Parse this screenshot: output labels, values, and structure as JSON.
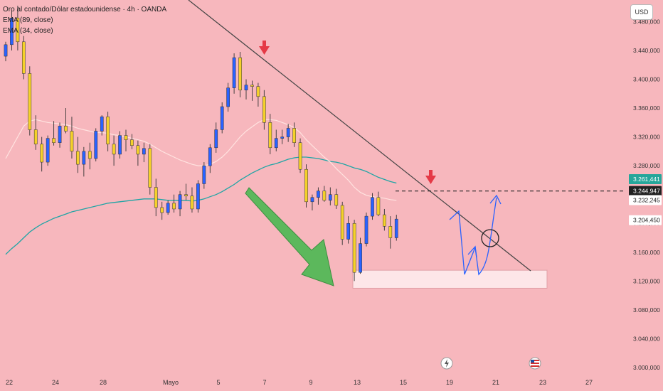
{
  "header": {
    "title": "Oro al contado/Dólar estadounidense · 4h · OANDA",
    "ema89": "EMA (89, close)",
    "ema34": "EMA (34, close)",
    "currency": "USD"
  },
  "chart_data": {
    "type": "candlestick",
    "title": "Oro al contado/Dólar estadounidense · 4h · OANDA",
    "y_ticks": [
      "3.480,000",
      "3.440,000",
      "3.400,000",
      "3.360,000",
      "3.320,000",
      "3.280,000",
      "3.240,000",
      "3.200,000",
      "3.160,000",
      "3.120,000",
      "3.080,000",
      "3.040,000",
      "3.000,000"
    ],
    "y_tick_values": [
      3480,
      3440,
      3400,
      3360,
      3320,
      3280,
      3240,
      3200,
      3160,
      3120,
      3080,
      3040,
      3000
    ],
    "ylim": [
      2997,
      3510
    ],
    "x_ticks": [
      "22",
      "24",
      "28",
      "Mayo",
      "5",
      "7",
      "9",
      "13",
      "15",
      "19",
      "21",
      "23",
      "27"
    ],
    "price_labels": [
      {
        "text": "3.261,441",
        "value": 3261.441,
        "color": "#26a69a"
      },
      {
        "text": "3.244,947",
        "value": 3244.947,
        "color": "#222222"
      },
      {
        "text": "3.232,245",
        "value": 3232.245,
        "color": "#ffffff"
      },
      {
        "text": "3.204,450",
        "value": 3204.45,
        "color": "#ffffff"
      }
    ],
    "resistance_level": 3244.947,
    "support_zone": [
      3110,
      3135
    ],
    "trendline": [
      [
        0,
        3555
      ],
      [
        1,
        3133
      ]
    ],
    "up_color": "#2962ff",
    "down_color": "#f5d12a",
    "ema89_color": "#1fa5a5",
    "ema34_color": "#ffe3e0",
    "annotation_arrow_color": "#4caf50",
    "candles": [
      [
        3432,
        3452,
        3425,
        3448
      ],
      [
        3448,
        3495,
        3440,
        3485
      ],
      [
        3485,
        3502,
        3440,
        3452
      ],
      [
        3452,
        3460,
        3400,
        3408
      ],
      [
        3408,
        3418,
        3322,
        3330
      ],
      [
        3330,
        3350,
        3302,
        3310
      ],
      [
        3310,
        3320,
        3272,
        3285
      ],
      [
        3285,
        3322,
        3280,
        3318
      ],
      [
        3318,
        3342,
        3308,
        3312
      ],
      [
        3312,
        3340,
        3305,
        3335
      ],
      [
        3335,
        3360,
        3325,
        3328
      ],
      [
        3328,
        3348,
        3290,
        3300
      ],
      [
        3300,
        3320,
        3270,
        3282
      ],
      [
        3282,
        3306,
        3265,
        3300
      ],
      [
        3300,
        3312,
        3275,
        3290
      ],
      [
        3290,
        3332,
        3286,
        3328
      ],
      [
        3328,
        3350,
        3322,
        3348
      ],
      [
        3348,
        3355,
        3300,
        3310
      ],
      [
        3310,
        3322,
        3280,
        3296
      ],
      [
        3296,
        3328,
        3290,
        3322
      ],
      [
        3322,
        3330,
        3300,
        3316
      ],
      [
        3316,
        3324,
        3303,
        3308
      ],
      [
        3308,
        3315,
        3280,
        3296
      ],
      [
        3296,
        3312,
        3285,
        3304
      ],
      [
        3304,
        3310,
        3240,
        3250
      ],
      [
        3250,
        3262,
        3210,
        3222
      ],
      [
        3222,
        3230,
        3205,
        3215
      ],
      [
        3215,
        3232,
        3212,
        3228
      ],
      [
        3228,
        3240,
        3215,
        3220
      ],
      [
        3220,
        3245,
        3210,
        3240
      ],
      [
        3240,
        3255,
        3232,
        3238
      ],
      [
        3238,
        3250,
        3215,
        3220
      ],
      [
        3220,
        3260,
        3215,
        3255
      ],
      [
        3255,
        3285,
        3248,
        3280
      ],
      [
        3280,
        3310,
        3270,
        3305
      ],
      [
        3305,
        3340,
        3298,
        3330
      ],
      [
        3330,
        3368,
        3325,
        3362
      ],
      [
        3362,
        3395,
        3355,
        3388
      ],
      [
        3388,
        3436,
        3380,
        3430
      ],
      [
        3430,
        3438,
        3375,
        3385
      ],
      [
        3385,
        3400,
        3372,
        3392
      ],
      [
        3392,
        3398,
        3370,
        3390
      ],
      [
        3390,
        3395,
        3362,
        3376
      ],
      [
        3376,
        3385,
        3330,
        3340
      ],
      [
        3340,
        3352,
        3296,
        3305
      ],
      [
        3305,
        3330,
        3300,
        3318
      ],
      [
        3318,
        3330,
        3310,
        3320
      ],
      [
        3320,
        3338,
        3313,
        3332
      ],
      [
        3332,
        3340,
        3306,
        3312
      ],
      [
        3312,
        3318,
        3270,
        3275
      ],
      [
        3275,
        3282,
        3222,
        3230
      ],
      [
        3230,
        3240,
        3218,
        3236
      ],
      [
        3236,
        3250,
        3226,
        3245
      ],
      [
        3245,
        3252,
        3230,
        3232
      ],
      [
        3232,
        3250,
        3225,
        3240
      ],
      [
        3240,
        3248,
        3220,
        3225
      ],
      [
        3225,
        3230,
        3170,
        3178
      ],
      [
        3178,
        3210,
        3172,
        3200
      ],
      [
        3200,
        3205,
        3120,
        3132
      ],
      [
        3132,
        3180,
        3130,
        3172
      ],
      [
        3172,
        3215,
        3168,
        3210
      ],
      [
        3210,
        3242,
        3205,
        3236
      ],
      [
        3236,
        3244,
        3210,
        3212
      ],
      [
        3212,
        3220,
        3190,
        3196
      ],
      [
        3196,
        3210,
        3165,
        3180
      ],
      [
        3180,
        3212,
        3176,
        3206
      ]
    ],
    "ema89": [
      3157,
      3165,
      3172,
      3180,
      3188,
      3194,
      3199,
      3203,
      3207,
      3210,
      3213,
      3216,
      3218,
      3220,
      3222,
      3224,
      3226,
      3228,
      3229,
      3230,
      3231,
      3232,
      3233,
      3234,
      3234,
      3234,
      3233,
      3232,
      3232,
      3232,
      3232,
      3231,
      3232,
      3234,
      3237,
      3240,
      3244,
      3249,
      3254,
      3260,
      3265,
      3270,
      3274,
      3278,
      3281,
      3283,
      3286,
      3289,
      3291,
      3292,
      3292,
      3291,
      3290,
      3288,
      3286,
      3285,
      3283,
      3280,
      3277,
      3275,
      3272,
      3268,
      3264,
      3261,
      3258,
      3256
    ],
    "ema34": [
      3290,
      3305,
      3320,
      3335,
      3342,
      3344,
      3342,
      3340,
      3339,
      3338,
      3337,
      3335,
      3332,
      3330,
      3328,
      3326,
      3326,
      3325,
      3323,
      3322,
      3320,
      3318,
      3316,
      3314,
      3310,
      3305,
      3300,
      3296,
      3292,
      3288,
      3285,
      3282,
      3280,
      3280,
      3282,
      3286,
      3292,
      3300,
      3310,
      3320,
      3328,
      3334,
      3340,
      3344,
      3344,
      3343,
      3340,
      3337,
      3333,
      3326,
      3316,
      3308,
      3300,
      3292,
      3285,
      3276,
      3268,
      3260,
      3250,
      3243,
      3239,
      3237,
      3236,
      3235,
      3233,
      3232
    ]
  }
}
